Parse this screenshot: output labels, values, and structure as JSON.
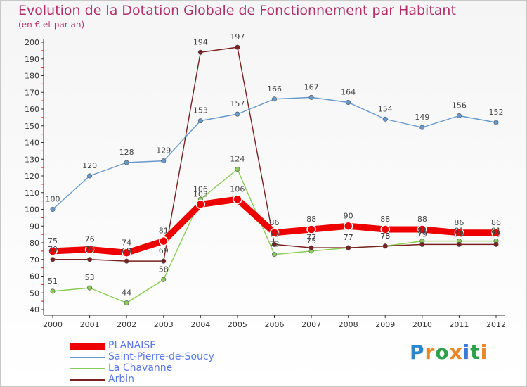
{
  "header": {
    "title": "Evolution de la Dotation Globale de Fonctionnement par Habitant",
    "subtitle": "(en € et par an)"
  },
  "logo": {
    "text": "Proxiti",
    "letter_colors": [
      "#2e86c8",
      "#e8862a",
      "#2ea04a",
      "#e8862a",
      "#3b7bd8",
      "#2ea04a",
      "#e8862a"
    ]
  },
  "chart_data": {
    "type": "line",
    "title": "Evolution de la Dotation Globale de Fonctionnement par Habitant",
    "subtitle": "(en € et par an)",
    "categories": [
      "2000",
      "2001",
      "2002",
      "2003",
      "2004",
      "2005",
      "2006",
      "2007",
      "2008",
      "2009",
      "2010",
      "2011",
      "2012"
    ],
    "ylim": [
      40,
      200
    ],
    "yticks": [
      40,
      50,
      60,
      70,
      80,
      90,
      100,
      110,
      120,
      130,
      140,
      150,
      160,
      170,
      180,
      190,
      200
    ],
    "grid": false,
    "legend_position": "bottom-left",
    "series": [
      {
        "name": "PLANAISE",
        "color": "#ee0000",
        "values": [
          75,
          76,
          74,
          81,
          103,
          106,
          86,
          88,
          90,
          88,
          88,
          86,
          86
        ],
        "labels": [
          "75",
          "76",
          "74",
          "81",
          "103",
          "106",
          "86",
          "88",
          "90",
          "88",
          "88",
          "86",
          "86"
        ]
      },
      {
        "name": "Saint-Pierre-de-Soucy",
        "color": "#6699cc",
        "values": [
          100,
          120,
          128,
          129,
          153,
          157,
          166,
          167,
          164,
          154,
          149,
          156,
          152
        ],
        "labels": [
          "100",
          "120",
          "128",
          "129",
          "153",
          "157",
          "166",
          "167",
          "164",
          "154",
          "149",
          "156",
          "152"
        ]
      },
      {
        "name": "La Chavanne",
        "color": "#88cc55",
        "values": [
          51,
          53,
          44,
          58,
          106,
          124,
          73,
          75,
          77,
          78,
          81,
          81,
          81
        ],
        "labels": [
          "51",
          "53",
          "44",
          "58",
          "106",
          "124",
          "73",
          "75",
          "77",
          "78",
          "81",
          "81",
          "81"
        ]
      },
      {
        "name": "Arbin",
        "color": "#7a2020",
        "values": [
          70,
          70,
          69,
          69,
          194,
          197,
          79,
          77,
          77,
          78,
          79,
          79,
          79
        ],
        "labels": [
          "70",
          "70",
          "69",
          "69",
          "194",
          "197",
          "79",
          "77",
          "77",
          "78",
          "79",
          "79",
          "79"
        ]
      }
    ]
  }
}
